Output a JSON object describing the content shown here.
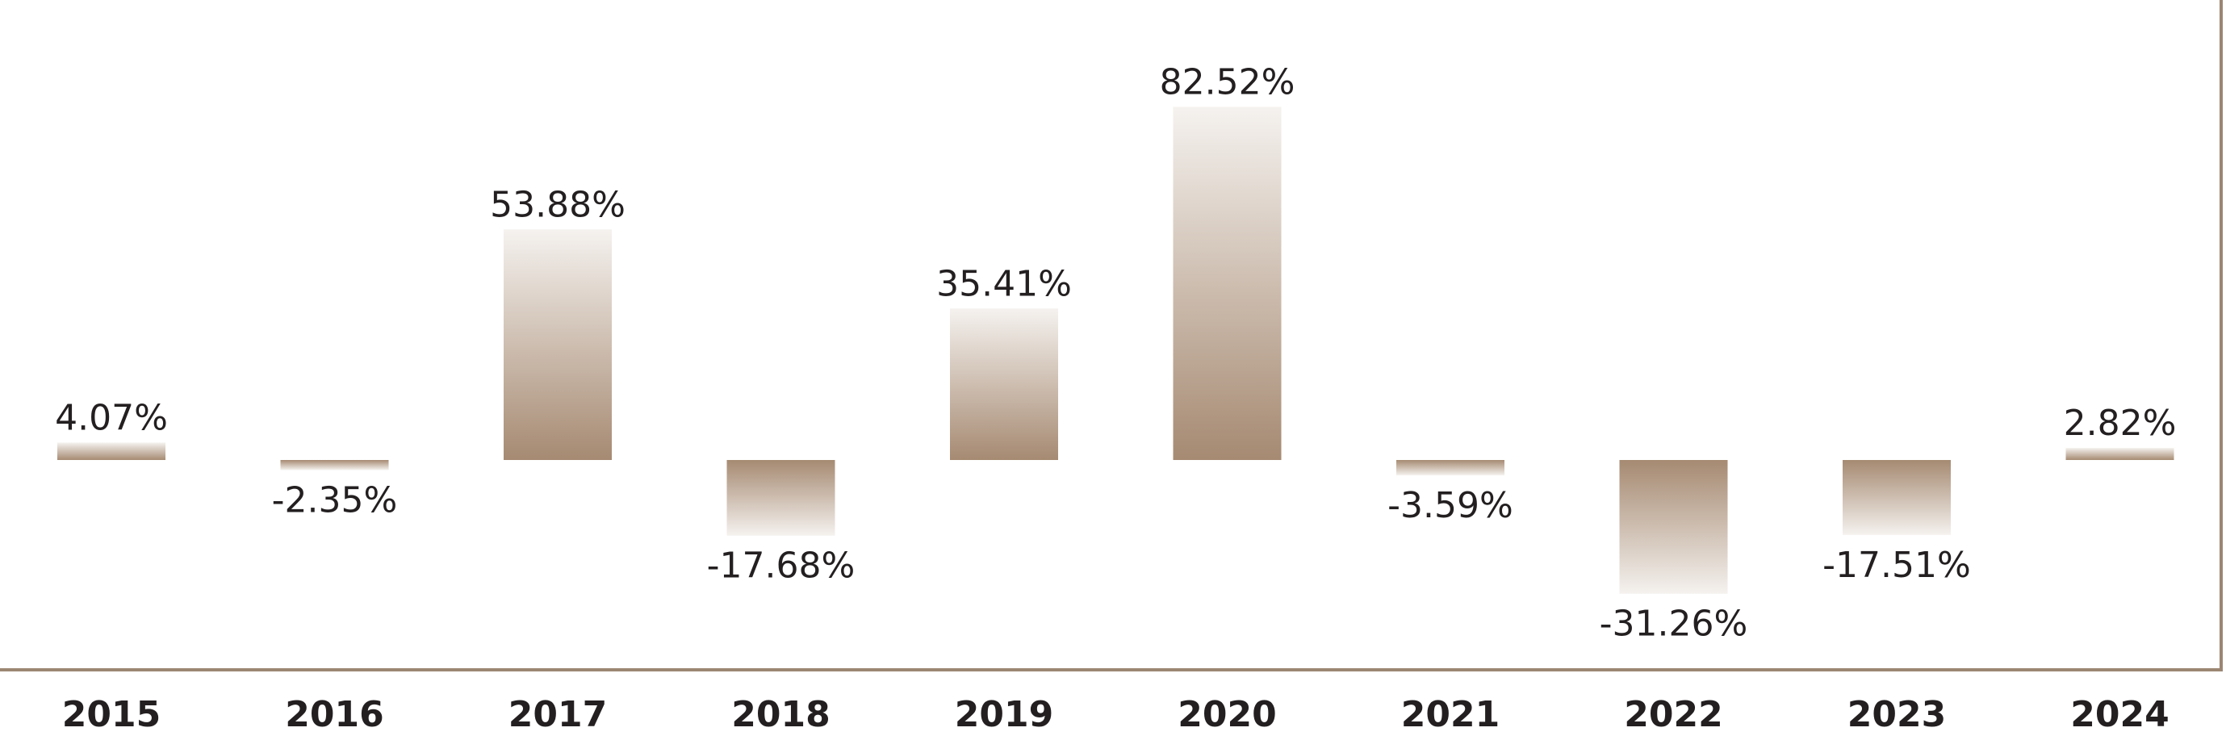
{
  "chart_data": {
    "type": "bar",
    "title": "",
    "xlabel": "",
    "ylabel": "",
    "categories": [
      "2015",
      "2016",
      "2017",
      "2018",
      "2019",
      "2020",
      "2021",
      "2022",
      "2023",
      "2024"
    ],
    "values": [
      4.07,
      -2.35,
      53.88,
      -17.68,
      35.41,
      82.52,
      -3.59,
      -31.26,
      -17.51,
      2.82
    ],
    "value_labels": [
      "4.07%",
      "-2.35%",
      "53.88%",
      "-17.68%",
      "35.41%",
      "82.52%",
      "-3.59%",
      "-31.26%",
      "-17.51%",
      "2.82%"
    ],
    "ylim": [
      -47.6,
      107.5
    ],
    "grid": false,
    "legend": "none",
    "colors": {
      "bar_dark": "#a68a72",
      "bar_light": "#f5f2ef",
      "frame": "#9c8673",
      "text": "#231f20"
    }
  }
}
